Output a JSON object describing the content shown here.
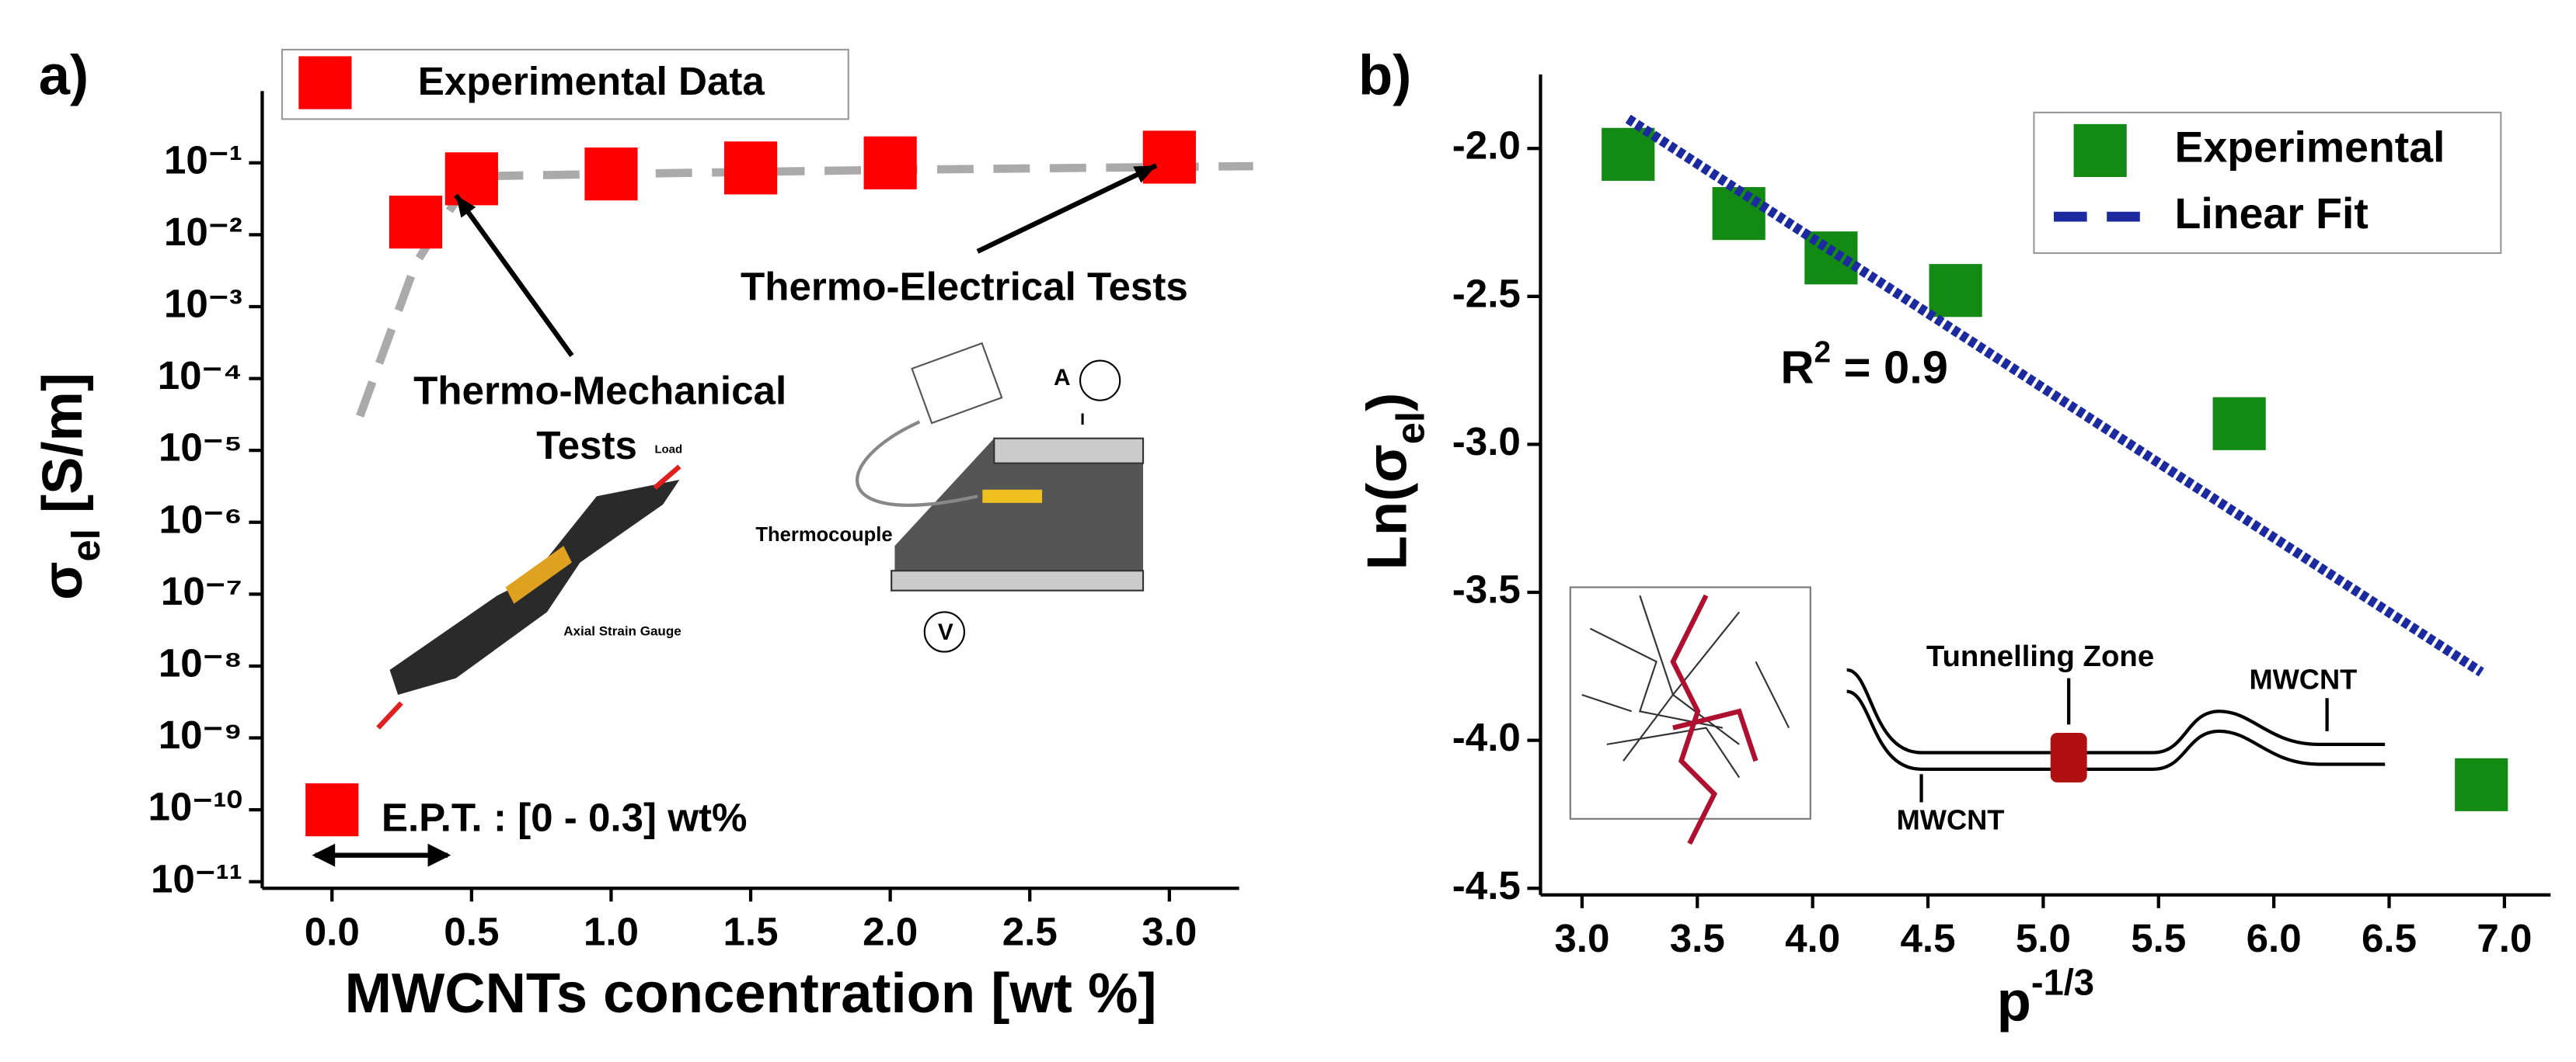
{
  "chart_data": [
    {
      "type": "scatter",
      "panel": "a)",
      "log_y": true,
      "legend": "upper left",
      "x_label": "MWCNTs concentration [wt %]",
      "y_label": {
        "main": "σ",
        "sub": "el",
        "rest": " [S/m]"
      },
      "series": [
        {
          "name": "Experimental Data",
          "color": "#ff0000",
          "x": [
            0,
            0.3,
            0.5,
            1,
            1.5,
            2,
            3
          ],
          "values": [
            1e-10,
            0.015,
            0.06,
            0.07,
            0.085,
            0.1,
            0.12
          ]
        }
      ],
      "fit": {
        "color": "#aaaaaa",
        "x": [
          0.1,
          0.3,
          0.5,
          1,
          2,
          3.3
        ],
        "values": [
          3e-05,
          0.004,
          0.065,
          0.07,
          0.08,
          0.09
        ]
      },
      "xlim": [
        -0.25,
        3.25
      ],
      "ylim": [
        1e-11,
        1
      ],
      "xticks": [
        {
          "value": 0,
          "label": "0.0"
        },
        0.5,
        {
          "value": 1,
          "label": "1.0"
        },
        1.5,
        {
          "value": 2,
          "label": "2.0"
        },
        2.5,
        {
          "value": 3,
          "label": "3.0"
        }
      ],
      "yticks": [
        {
          "value": 1e-11,
          "label": "10⁻¹¹"
        },
        {
          "value": 1e-10,
          "label": "10⁻¹⁰"
        },
        {
          "value": 1e-09,
          "label": "10⁻⁹"
        },
        {
          "value": 1e-08,
          "label": "10⁻⁸"
        },
        {
          "value": 1e-07,
          "label": "10⁻⁷"
        },
        {
          "value": 1e-06,
          "label": "10⁻⁶"
        },
        {
          "value": 1e-05,
          "label": "10⁻⁵"
        },
        {
          "value": 0.0001,
          "label": "10⁻⁴"
        },
        {
          "value": 0.001,
          "label": "10⁻³"
        },
        {
          "value": 0.01,
          "label": "10⁻²"
        },
        {
          "value": 0.1,
          "label": "10⁻¹"
        }
      ],
      "annotations": [
        "Thermo-Electrical Tests",
        "Thermo-Mechanical",
        "Tests",
        "E.P.T. : [0 - 0.3] wt%"
      ],
      "inset_labels": [
        "Thermocouple",
        "A",
        "V",
        "I",
        "Axial Strain Gauge",
        "Load"
      ]
    },
    {
      "type": "scatter",
      "panel": "b)",
      "legend": "upper right",
      "x_label": {
        "main": "p",
        "sup": "-1/3"
      },
      "y_label": {
        "main": "Ln(σ",
        "sub": "el",
        "rest": ")"
      },
      "series": [
        {
          "name": "Experimental",
          "color": "#138a13",
          "x": [
            3.2,
            3.68,
            4.08,
            4.62,
            5.85,
            6.9
          ],
          "values": [
            -2.02,
            -2.22,
            -2.37,
            -2.48,
            -2.93,
            -4.15
          ]
        },
        {
          "name": "Linear Fit",
          "color": "#1c2aa0",
          "line": true,
          "x": [
            3.2,
            6.9
          ],
          "values": [
            -1.9,
            -3.77
          ]
        }
      ],
      "xlim": [
        2.82,
        7.2
      ],
      "ylim": [
        -4.5,
        -1.75
      ],
      "xticks": [
        {
          "value": 3,
          "label": "3.0"
        },
        3.5,
        {
          "value": 4,
          "label": "4.0"
        },
        4.5,
        {
          "value": 5,
          "label": "5.0"
        },
        5.5,
        {
          "value": 6,
          "label": "6.0"
        },
        6.5,
        {
          "value": 7,
          "label": "7.0"
        }
      ],
      "yticks": [
        {
          "value": -4.5,
          "label": "-4.5"
        },
        {
          "value": -4,
          "label": "-4.0"
        },
        {
          "value": -3.5,
          "label": "-3.5"
        },
        {
          "value": -3,
          "label": "-3.0"
        },
        {
          "value": -2.5,
          "label": "-2.5"
        },
        {
          "value": -2,
          "label": "-2.0"
        }
      ],
      "r2": {
        "main": "R",
        "sup": "2",
        "rest": " = 0.9"
      },
      "inset_labels": [
        "Tunnelling Zone",
        "MWCNT",
        "MWCNT"
      ]
    }
  ]
}
